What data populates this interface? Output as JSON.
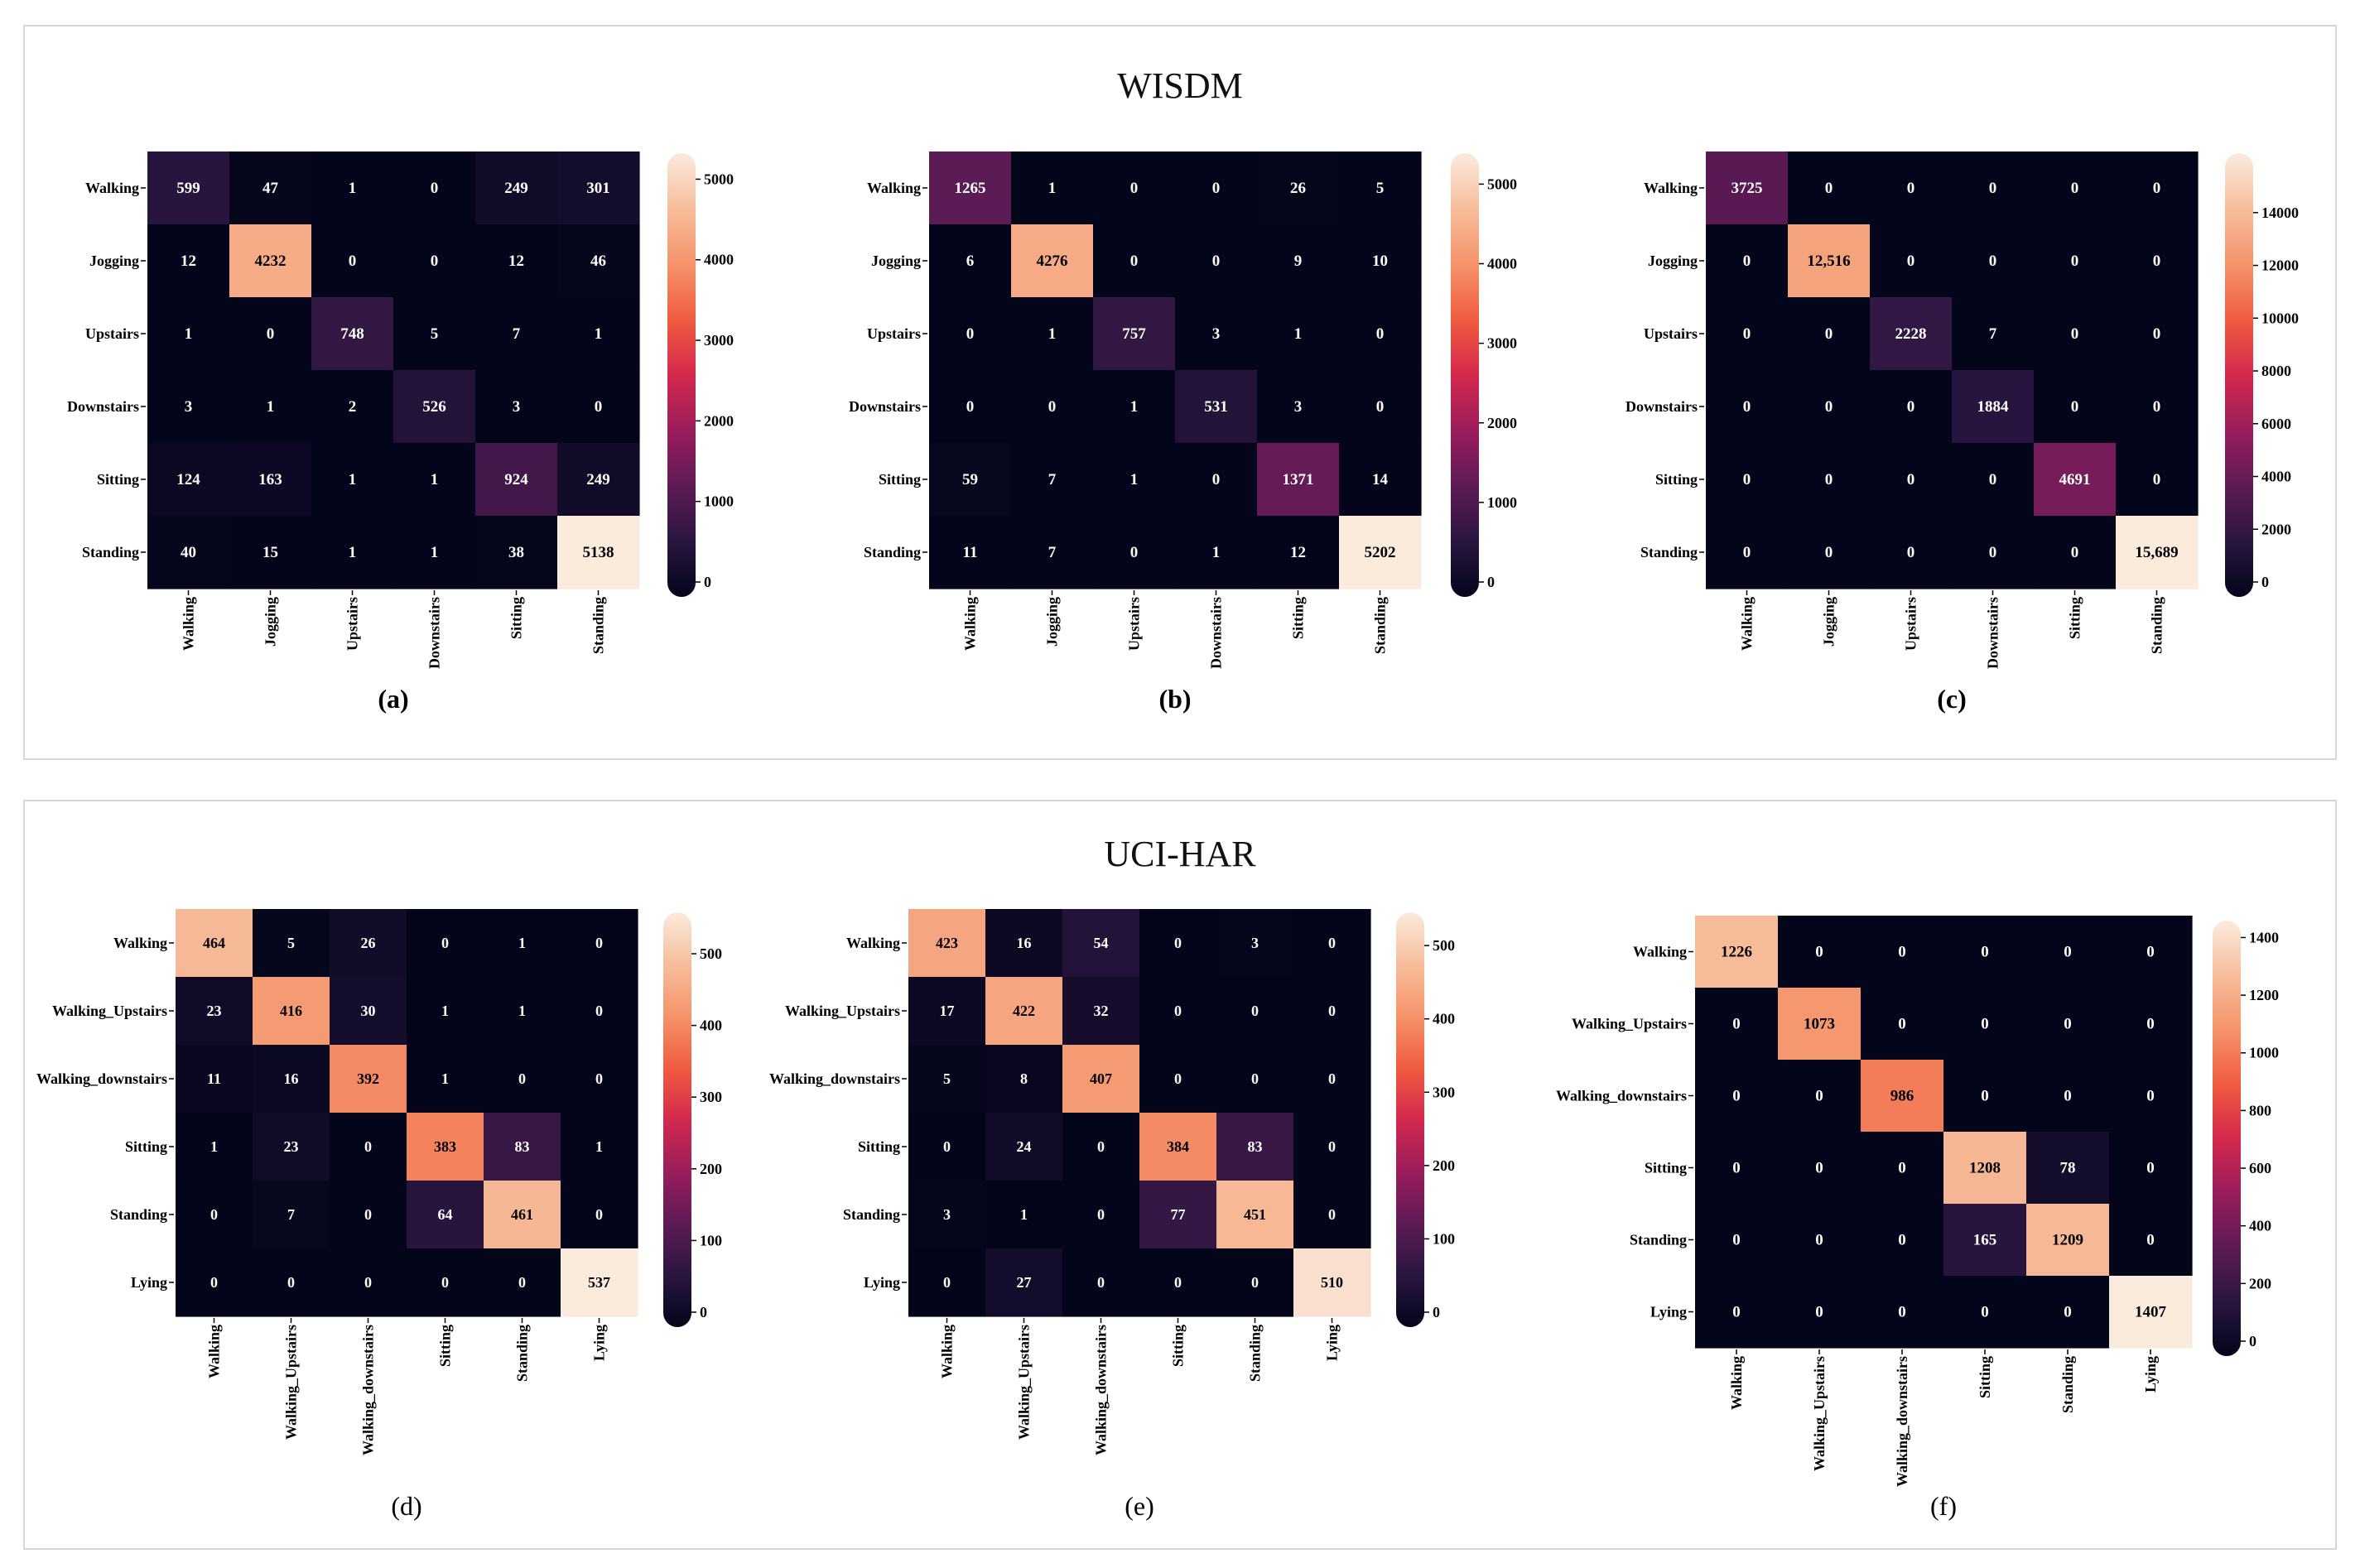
{
  "panels": [
    {
      "title": "WISDM"
    },
    {
      "title": "UCI-HAR"
    }
  ],
  "colors": {
    "scale": [
      "#03051a",
      "#2a1640",
      "#5e1b55",
      "#9a1d5c",
      "#d4294d",
      "#f05c3f",
      "#f5936a",
      "#f6bd9b",
      "#faebdd"
    ],
    "border": "#d6d6d6",
    "dark_text": "#000000",
    "light_text": "#ffffff"
  },
  "chart_data": [
    {
      "type": "heatmap",
      "id": "a",
      "caption": "(a)",
      "labels": [
        "Walking",
        "Jogging",
        "Upstairs",
        "Downstairs",
        "Sitting",
        "Standing"
      ],
      "values": [
        [
          599,
          47,
          1,
          0,
          249,
          301
        ],
        [
          12,
          4232,
          0,
          0,
          12,
          46
        ],
        [
          1,
          0,
          748,
          5,
          7,
          1
        ],
        [
          3,
          1,
          2,
          526,
          3,
          0
        ],
        [
          124,
          163,
          1,
          1,
          924,
          249
        ],
        [
          40,
          15,
          1,
          1,
          38,
          5138
        ]
      ],
      "cell_text": [
        [
          "599",
          "47",
          "1",
          "0",
          "249",
          "301"
        ],
        [
          "12",
          "4232",
          "0",
          "0",
          "12",
          "46"
        ],
        [
          "1",
          "0",
          "748",
          "5",
          "7",
          "1"
        ],
        [
          "3",
          "1",
          "2",
          "526",
          "3",
          "0"
        ],
        [
          "124",
          "163",
          "1",
          "1",
          "924",
          "249"
        ],
        [
          "40",
          "15",
          "1",
          "1",
          "38",
          "5138"
        ]
      ],
      "vmax": 5138,
      "colorbar_ticks": [
        "0",
        "1000",
        "2000",
        "3000",
        "4000",
        "5000"
      ],
      "colorbar_values": [
        0,
        1000,
        2000,
        3000,
        4000,
        5000
      ]
    },
    {
      "type": "heatmap",
      "id": "b",
      "caption": "(b)",
      "labels": [
        "Walking",
        "Jogging",
        "Upstairs",
        "Downstairs",
        "Sitting",
        "Standing"
      ],
      "values": [
        [
          1265,
          1,
          0,
          0,
          26,
          5
        ],
        [
          6,
          4276,
          0,
          0,
          9,
          10
        ],
        [
          0,
          1,
          757,
          3,
          1,
          0
        ],
        [
          0,
          0,
          1,
          531,
          3,
          0
        ],
        [
          59,
          7,
          1,
          0,
          1371,
          14
        ],
        [
          11,
          7,
          0,
          1,
          12,
          5202
        ]
      ],
      "cell_text": [
        [
          "1265",
          "1",
          "0",
          "0",
          "26",
          "5"
        ],
        [
          "6",
          "4276",
          "0",
          "0",
          "9",
          "10"
        ],
        [
          "0",
          "1",
          "757",
          "3",
          "1",
          "0"
        ],
        [
          "0",
          "0",
          "1",
          "531",
          "3",
          "0"
        ],
        [
          "59",
          "7",
          "1",
          "0",
          "1371",
          "14"
        ],
        [
          "11",
          "7",
          "0",
          "1",
          "12",
          "5202"
        ]
      ],
      "vmax": 5202,
      "colorbar_ticks": [
        "0",
        "1000",
        "2000",
        "3000",
        "4000",
        "5000"
      ],
      "colorbar_values": [
        0,
        1000,
        2000,
        3000,
        4000,
        5000
      ]
    },
    {
      "type": "heatmap",
      "id": "c",
      "caption": "(c)",
      "labels": [
        "Walking",
        "Jogging",
        "Upstairs",
        "Downstairs",
        "Sitting",
        "Standing"
      ],
      "values": [
        [
          3725,
          0,
          0,
          0,
          0,
          0
        ],
        [
          0,
          12516,
          0,
          0,
          0,
          0
        ],
        [
          0,
          0,
          2228,
          7,
          0,
          0
        ],
        [
          0,
          0,
          0,
          1884,
          0,
          0
        ],
        [
          0,
          0,
          0,
          0,
          4691,
          0
        ],
        [
          0,
          0,
          0,
          0,
          0,
          15689
        ]
      ],
      "cell_text": [
        [
          "3725",
          "0",
          "0",
          "0",
          "0",
          "0"
        ],
        [
          "0",
          "12,516",
          "0",
          "0",
          "0",
          "0"
        ],
        [
          "0",
          "0",
          "2228",
          "7",
          "0",
          "0"
        ],
        [
          "0",
          "0",
          "0",
          "1884",
          "0",
          "0"
        ],
        [
          "0",
          "0",
          "0",
          "0",
          "4691",
          "0"
        ],
        [
          "0",
          "0",
          "0",
          "0",
          "0",
          "15,689"
        ]
      ],
      "vmax": 15689,
      "colorbar_ticks": [
        "0",
        "2000",
        "4000",
        "6000",
        "8000",
        "10000",
        "12000",
        "14000"
      ],
      "colorbar_values": [
        0,
        2000,
        4000,
        6000,
        8000,
        10000,
        12000,
        14000
      ]
    },
    {
      "type": "heatmap",
      "id": "d",
      "caption": "(d)",
      "labels": [
        "Walking",
        "Walking_Upstairs",
        "Walking_downstairs",
        "Sitting",
        "Standing",
        "Lying"
      ],
      "values": [
        [
          464,
          5,
          26,
          0,
          1,
          0
        ],
        [
          23,
          416,
          30,
          1,
          1,
          0
        ],
        [
          11,
          16,
          392,
          1,
          0,
          0
        ],
        [
          1,
          23,
          0,
          383,
          83,
          1
        ],
        [
          0,
          7,
          0,
          64,
          461,
          0
        ],
        [
          0,
          0,
          0,
          0,
          0,
          537
        ]
      ],
      "cell_text": [
        [
          "464",
          "5",
          "26",
          "0",
          "1",
          "0"
        ],
        [
          "23",
          "416",
          "30",
          "1",
          "1",
          "0"
        ],
        [
          "11",
          "16",
          "392",
          "1",
          "0",
          "0"
        ],
        [
          "1",
          "23",
          "0",
          "383",
          "83",
          "1"
        ],
        [
          "0",
          "7",
          "0",
          "64",
          "461",
          "0"
        ],
        [
          "0",
          "0",
          "0",
          "0",
          "0",
          "537"
        ]
      ],
      "vmax": 537,
      "colorbar_ticks": [
        "0",
        "100",
        "200",
        "300",
        "400",
        "500"
      ],
      "colorbar_values": [
        0,
        100,
        200,
        300,
        400,
        500
      ]
    },
    {
      "type": "heatmap",
      "id": "e",
      "caption": "(e)",
      "labels": [
        "Walking",
        "Walking_Upstairs",
        "Walking_downstairs",
        "Sitting",
        "Standing",
        "Lying"
      ],
      "values": [
        [
          423,
          16,
          54,
          0,
          3,
          0
        ],
        [
          17,
          422,
          32,
          0,
          0,
          0
        ],
        [
          5,
          8,
          407,
          0,
          0,
          0
        ],
        [
          0,
          24,
          0,
          384,
          83,
          0
        ],
        [
          3,
          1,
          0,
          77,
          451,
          0
        ],
        [
          0,
          27,
          0,
          0,
          0,
          510
        ]
      ],
      "cell_text": [
        [
          "423",
          "16",
          "54",
          "0",
          "3",
          "0"
        ],
        [
          "17",
          "422",
          "32",
          "0",
          "0",
          "0"
        ],
        [
          "5",
          "8",
          "407",
          "0",
          "0",
          "0"
        ],
        [
          "0",
          "24",
          "0",
          "384",
          "83",
          "0"
        ],
        [
          "3",
          "1",
          "0",
          "77",
          "451",
          "0"
        ],
        [
          "0",
          "27",
          "0",
          "0",
          "0",
          "510"
        ]
      ],
      "vmax": 525,
      "colorbar_ticks": [
        "0",
        "100",
        "200",
        "300",
        "400",
        "500"
      ],
      "colorbar_values": [
        0,
        100,
        200,
        300,
        400,
        500
      ]
    },
    {
      "type": "heatmap",
      "id": "f",
      "caption": "(f)",
      "labels": [
        "Walking",
        "Walking_Upstairs",
        "Walking_downstairs",
        "Sitting",
        "Standing",
        "Lying"
      ],
      "values": [
        [
          1226,
          0,
          0,
          0,
          0,
          0
        ],
        [
          0,
          1073,
          0,
          0,
          0,
          0
        ],
        [
          0,
          0,
          986,
          0,
          0,
          0
        ],
        [
          0,
          0,
          0,
          1208,
          78,
          0
        ],
        [
          0,
          0,
          0,
          165,
          1209,
          0
        ],
        [
          0,
          0,
          0,
          0,
          0,
          1407
        ]
      ],
      "cell_text": [
        [
          "1226",
          "0",
          "0",
          "0",
          "0",
          "0"
        ],
        [
          "0",
          "1073",
          "0",
          "0",
          "0",
          "0"
        ],
        [
          "0",
          "0",
          "986",
          "0",
          "0",
          "0"
        ],
        [
          "0",
          "0",
          "0",
          "1208",
          "78",
          "0"
        ],
        [
          "0",
          "0",
          "0",
          "165",
          "1209",
          "0"
        ],
        [
          "0",
          "0",
          "0",
          "0",
          "0",
          "1407"
        ]
      ],
      "vmax": 1407,
      "colorbar_ticks": [
        "0",
        "200",
        "400",
        "600",
        "800",
        "1000",
        "1200",
        "1400"
      ],
      "colorbar_values": [
        0,
        200,
        400,
        600,
        800,
        1000,
        1200,
        1400
      ]
    }
  ]
}
